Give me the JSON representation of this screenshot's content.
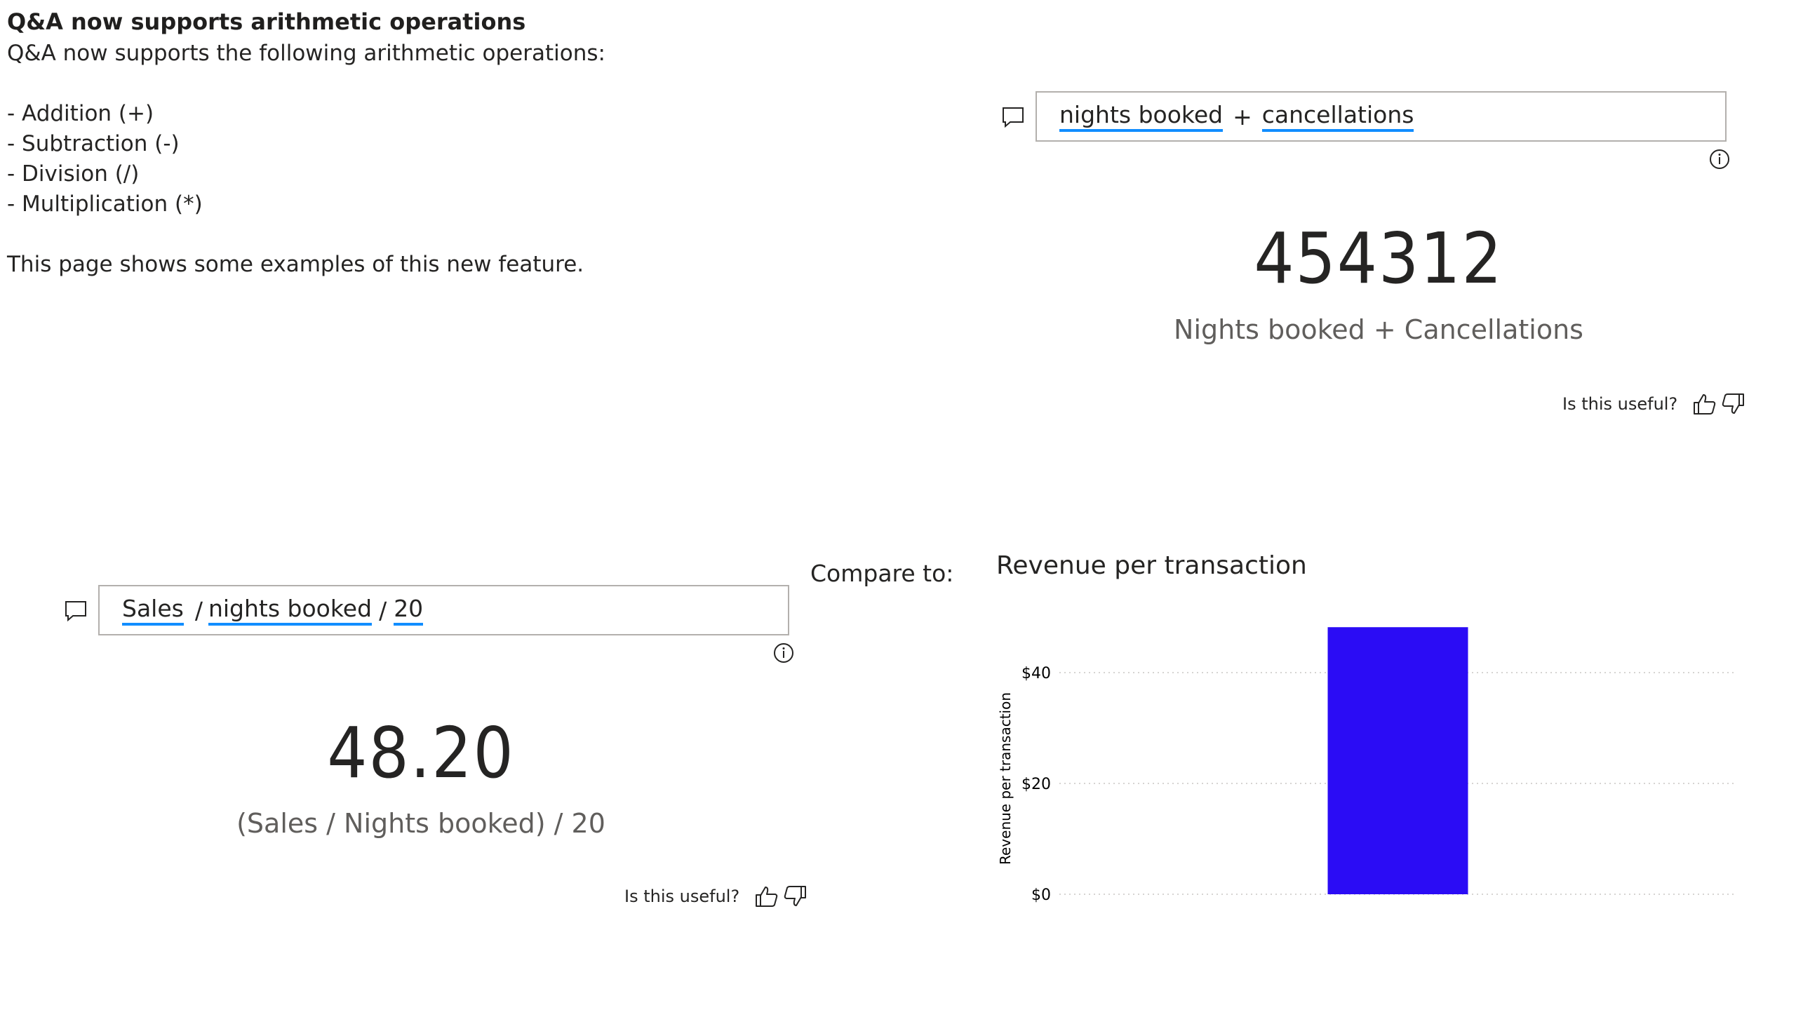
{
  "intro": {
    "title": "Q&A now supports arithmetic operations",
    "line1": "Q&A now supports the following arithmetic operations:",
    "ops": [
      "- Addition (+)",
      "- Subtraction (-)",
      "- Division (/)",
      "- Multiplication (*)"
    ],
    "footer": "This page shows some examples of this new feature."
  },
  "qa_top": {
    "terms": [
      "nights booked",
      "+",
      "cancellations"
    ],
    "value": "454312",
    "label": "Nights booked + Cancellations",
    "useful": "Is this useful?"
  },
  "qa_bottom": {
    "terms": [
      "Sales",
      "/",
      "nights booked",
      "/",
      "20"
    ],
    "value": "48.20",
    "label": "(Sales / Nights booked) / 20",
    "useful": "Is this useful?"
  },
  "compare_label": "Compare to:",
  "chart_data": {
    "type": "bar",
    "title": "Revenue per transaction",
    "ylabel": "Revenue per transaction",
    "xlabel": "",
    "categories": [
      ""
    ],
    "values": [
      48.2
    ],
    "ylim": [
      0,
      50
    ],
    "yticks": [
      {
        "v": 0,
        "t": "$0"
      },
      {
        "v": 20,
        "t": "$20"
      },
      {
        "v": 40,
        "t": "$40"
      }
    ],
    "bar_color": "#2b0cf5",
    "grid": true
  },
  "colors": {
    "underline": "#118dff",
    "border": "#b3b0ad"
  }
}
